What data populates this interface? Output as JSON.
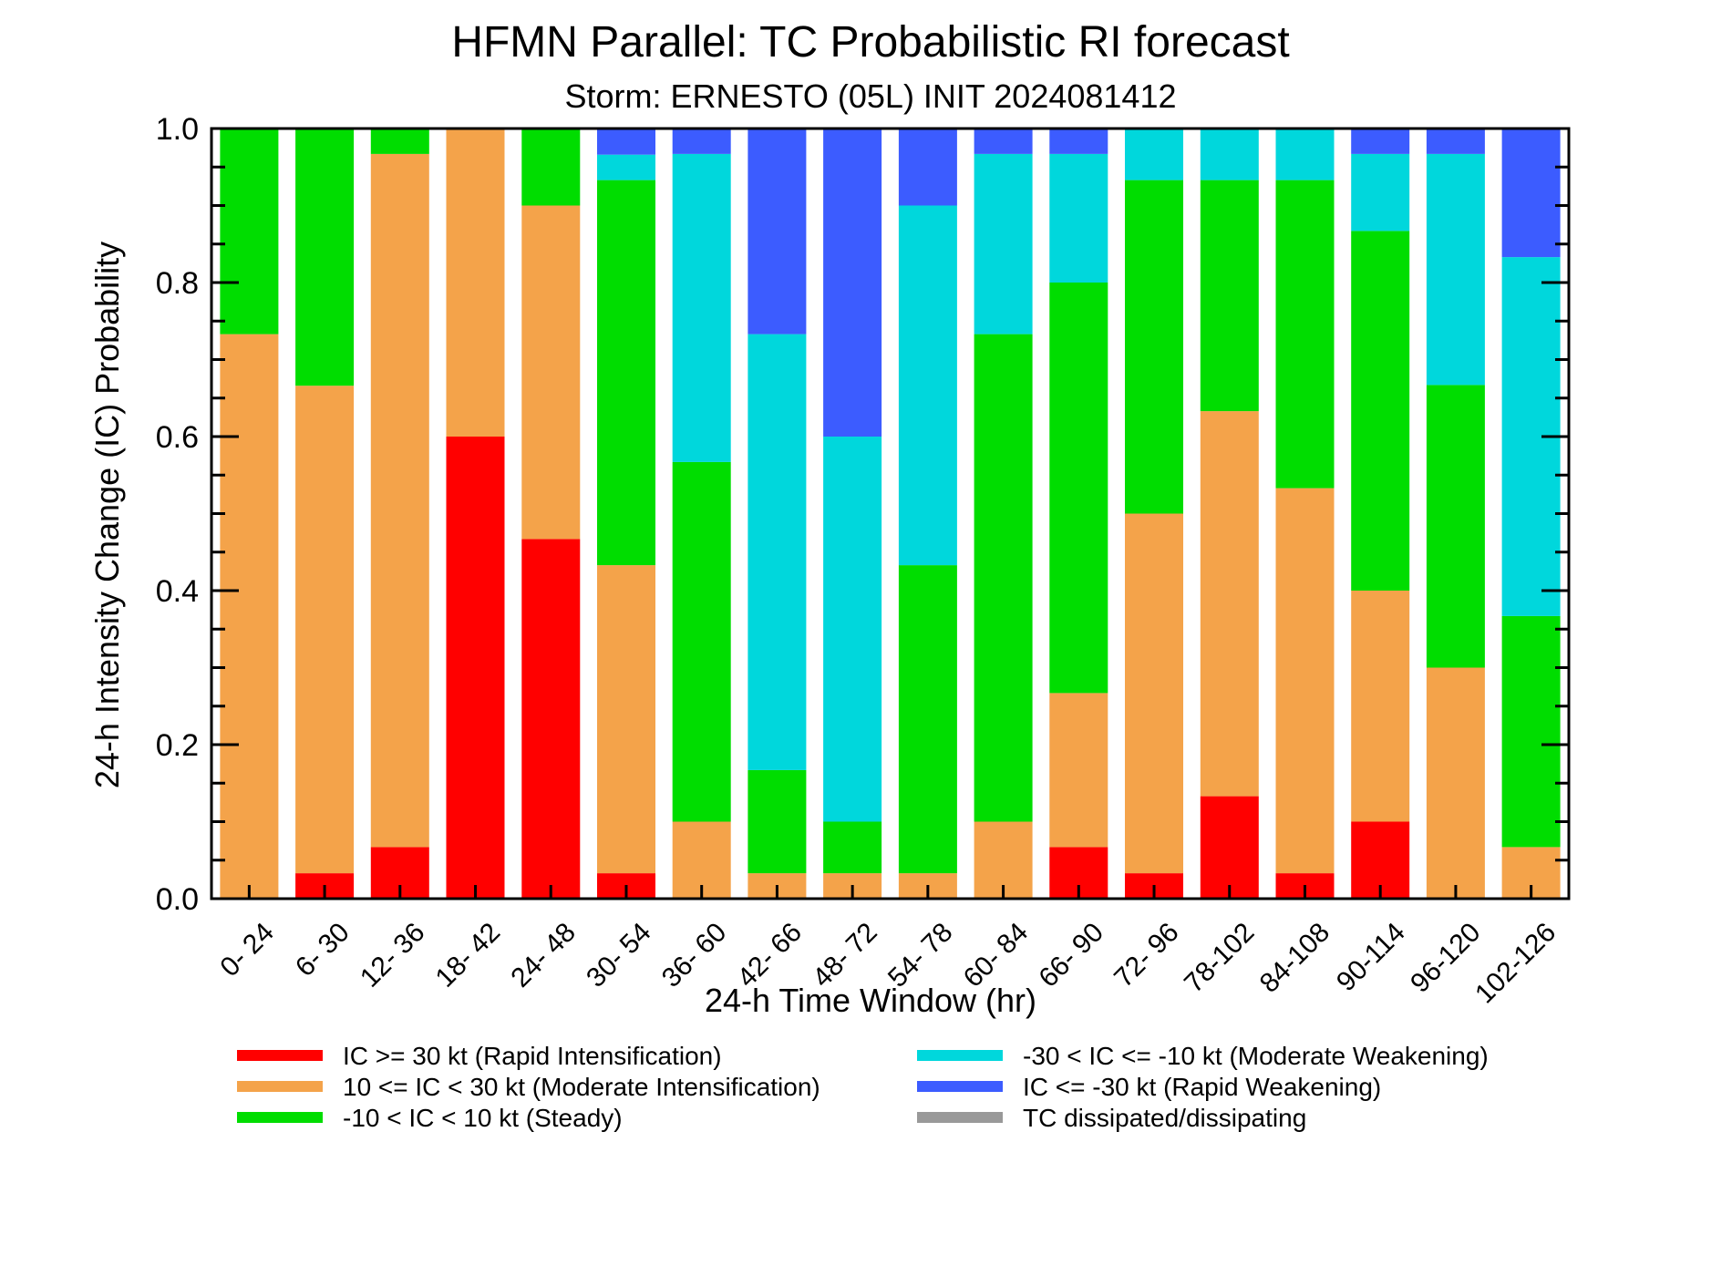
{
  "chart_data": {
    "type": "bar",
    "stacked": true,
    "title": "HFMN Parallel: TC Probabilistic RI forecast",
    "subtitle": "Storm: ERNESTO (05L) INIT 2024081412",
    "xlabel": "24-h Time Window (hr)",
    "ylabel": "24-h Intensity Change (IC) Probability",
    "ylim": [
      0,
      1
    ],
    "yticks": [
      "0.0",
      "0.2",
      "0.4",
      "0.6",
      "0.8",
      "1.0"
    ],
    "ytick_values": [
      0,
      0.2,
      0.4,
      0.6,
      0.8,
      1.0
    ],
    "categories": [
      "0- 24",
      "6- 30",
      "12- 36",
      "18- 42",
      "24- 48",
      "30- 54",
      "36- 60",
      "42- 66",
      "48- 72",
      "54- 78",
      "60- 84",
      "66- 90",
      "72- 96",
      "78-102",
      "84-108",
      "90-114",
      "96-120",
      "102-126"
    ],
    "series": [
      {
        "name": "IC >= 30 kt (Rapid Intensification)",
        "color": "#ff0000",
        "values": [
          0,
          0.033,
          0.067,
          0.6,
          0.467,
          0.033,
          0,
          0,
          0,
          0,
          0,
          0.067,
          0.033,
          0.133,
          0.033,
          0.1,
          0,
          0
        ]
      },
      {
        "name": "10 <= IC < 30 kt (Moderate Intensification)",
        "color": "#f4a34a",
        "values": [
          0.733,
          0.633,
          0.9,
          0.4,
          0.433,
          0.4,
          0.1,
          0.033,
          0.033,
          0.033,
          0.1,
          0.2,
          0.467,
          0.5,
          0.5,
          0.3,
          0.3,
          0.067
        ]
      },
      {
        "name": "-10 < IC < 10 kt (Steady)",
        "color": "#00dd00",
        "values": [
          0.267,
          0.334,
          0.033,
          0,
          0.1,
          0.5,
          0.467,
          0.134,
          0.067,
          0.4,
          0.633,
          0.533,
          0.433,
          0.3,
          0.4,
          0.467,
          0.367,
          0.3
        ]
      },
      {
        "name": "-30 < IC <= -10 kt (Moderate Weakening)",
        "color": "#00d7dc",
        "values": [
          0,
          0,
          0,
          0,
          0,
          0.033,
          0.4,
          0.566,
          0.5,
          0.467,
          0.234,
          0.167,
          0.067,
          0.067,
          0.067,
          0.1,
          0.3,
          0.466
        ]
      },
      {
        "name": "IC <= -30 kt (Rapid Weakening)",
        "color": "#3c5cff",
        "values": [
          0,
          0,
          0,
          0,
          0,
          0.034,
          0.033,
          0.267,
          0.4,
          0.1,
          0.033,
          0.033,
          0,
          0,
          0,
          0.033,
          0.033,
          0.167
        ]
      },
      {
        "name": "TC dissipated/dissipating",
        "color": "#999999",
        "values": [
          0,
          0,
          0,
          0,
          0,
          0,
          0,
          0,
          0,
          0,
          0,
          0,
          0,
          0,
          0,
          0,
          0,
          0
        ]
      }
    ],
    "grid": false,
    "legend_placement": "bottom"
  }
}
